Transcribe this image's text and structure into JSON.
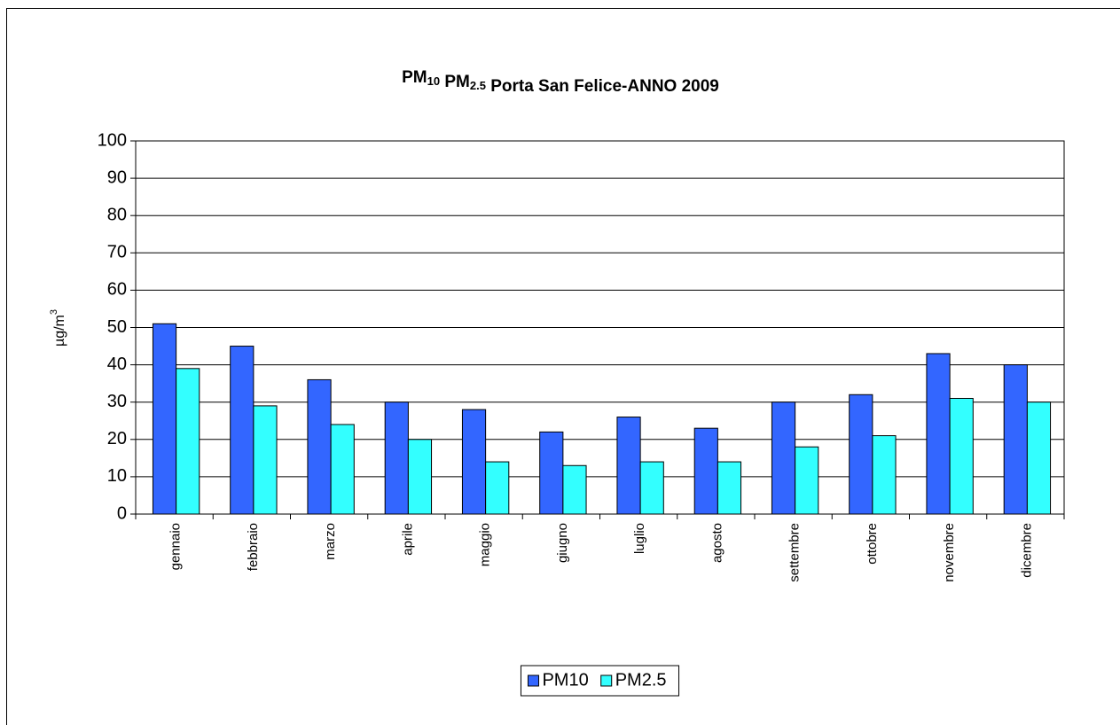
{
  "chart_data": {
    "type": "bar",
    "title": "PM10 PM2.5 Porta San Felice-ANNO 2009",
    "y_label": "µg/m3",
    "categories": [
      "gennaio",
      "febbraio",
      "marzo",
      "aprile",
      "maggio",
      "giugno",
      "luglio",
      "agosto",
      "settembre",
      "ottobre",
      "novembre",
      "dicembre"
    ],
    "series": [
      {
        "name": "PM10",
        "color": "#3366ff",
        "values": [
          51,
          45,
          36,
          30,
          28,
          22,
          26,
          23,
          30,
          32,
          43,
          40
        ]
      },
      {
        "name": "PM2.5",
        "color": "#33ffff",
        "values": [
          39,
          29,
          24,
          20,
          14,
          13,
          14,
          14,
          18,
          21,
          31,
          30
        ]
      }
    ],
    "ylim": [
      0,
      100
    ],
    "yticks": [
      0,
      10,
      20,
      30,
      40,
      50,
      60,
      70,
      80,
      90,
      100
    ],
    "grid": true,
    "legend": "bottom"
  }
}
